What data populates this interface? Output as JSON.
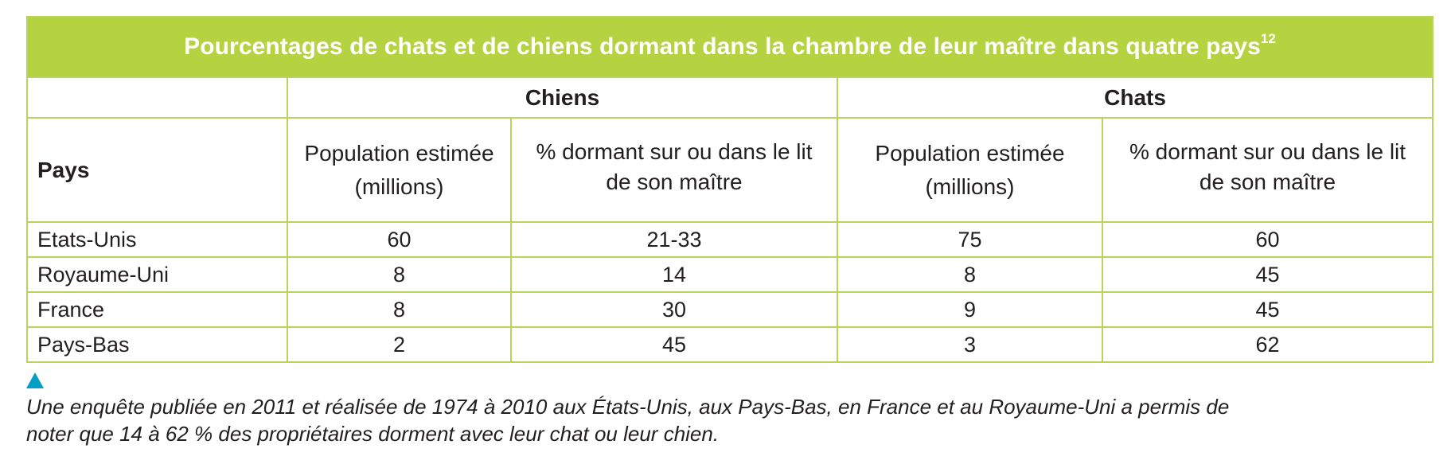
{
  "table": {
    "title": "Pourcentages de chats et de chiens dormant dans la chambre de leur maître dans quatre pays",
    "title_note": "12",
    "groups": {
      "dogs": "Chiens",
      "cats": "Chats"
    },
    "headers": {
      "country": "Pays",
      "dogs_population_line1": "Population estimée",
      "dogs_population_line2": "(millions)",
      "dogs_pct_line1": "% dormant sur ou dans le lit",
      "dogs_pct_line2": "de son maître",
      "cats_population_line1": "Population estimée",
      "cats_population_line2": "(millions)",
      "cats_pct_line1": "% dormant sur ou dans le lit",
      "cats_pct_line2": "de son maître"
    },
    "rows": [
      {
        "country": "Etats-Unis",
        "dogs_population": "60",
        "dogs_pct": "21-33",
        "cats_population": "75",
        "cats_pct": "60"
      },
      {
        "country": "Royaume-Uni",
        "dogs_population": "8",
        "dogs_pct": "14",
        "cats_population": "8",
        "cats_pct": "45"
      },
      {
        "country": "France",
        "dogs_population": "8",
        "dogs_pct": "30",
        "cats_population": "9",
        "cats_pct": "45"
      },
      {
        "country": "Pays-Bas",
        "dogs_population": "2",
        "dogs_pct": "45",
        "cats_population": "3",
        "cats_pct": "62"
      }
    ]
  },
  "note": {
    "line1": "Une enquête publiée en 2011 et réalisée de 1974 à 2010 aux États-Unis, aux Pays-Bas, en France et au Royaume-Uni a permis de",
    "line2": "noter que 14 à 62 % des propriétaires dorment avec leur chat ou leur chien."
  },
  "colors": {
    "header_green": "#b5d240",
    "border_green": "#b9d45a",
    "marker_blue": "#00a0c6"
  },
  "icons": {
    "marker": "triangle-up-icon"
  }
}
